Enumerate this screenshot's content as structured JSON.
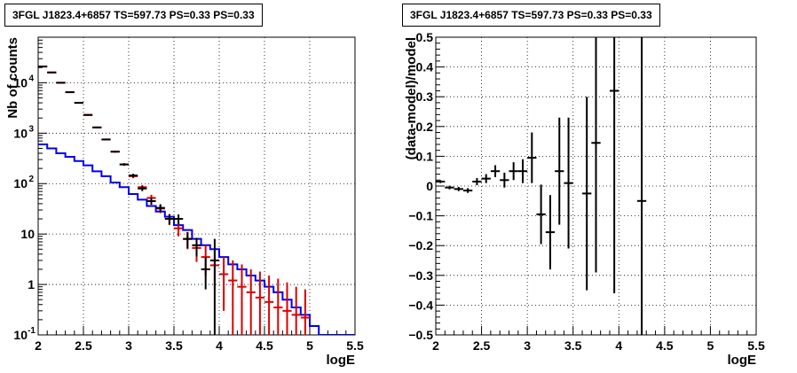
{
  "panels": [
    {
      "title": "3FGL J1823.4+6857 TS=597.73 PS=0.33 PS=0.33"
    },
    {
      "title": "3FGL J1823.4+6857 TS=597.73 PS=0.33 PS=0.33"
    }
  ],
  "chart_data": [
    {
      "type": "line",
      "xlabel": "logE",
      "ylabel": "Nb of counts",
      "xlim": [
        2,
        5.5
      ],
      "ylim": [
        0.1,
        80000
      ],
      "yscale": "log",
      "grid": true,
      "xticks": [
        "2",
        "2.5",
        "3",
        "3.5",
        "4",
        "4.5",
        "5",
        "5.5"
      ],
      "yticks": [
        {
          "value": 0.1,
          "label": "10",
          "sup": "-1"
        },
        {
          "value": 1,
          "label": "1",
          "sup": ""
        },
        {
          "value": 10,
          "label": "10",
          "sup": ""
        },
        {
          "value": 100,
          "label": "10",
          "sup": "2"
        },
        {
          "value": 1000,
          "label": "10",
          "sup": "3"
        },
        {
          "value": 10000,
          "label": "10",
          "sup": "4"
        }
      ],
      "bin_edges": [
        2.0,
        2.1,
        2.2,
        2.3,
        2.4,
        2.5,
        2.6,
        2.7,
        2.8,
        2.9,
        3.0,
        3.1,
        3.2,
        3.3,
        3.4,
        3.5,
        3.6,
        3.7,
        3.8,
        3.9,
        4.0,
        4.1,
        4.2,
        4.3,
        4.4,
        4.5,
        4.6,
        4.7,
        4.8,
        4.9,
        5.0,
        5.1,
        5.2,
        5.3,
        5.4,
        5.5
      ],
      "series": [
        {
          "color": "#0000ee",
          "style": "step",
          "values": [
            600,
            500,
            400,
            340,
            280,
            230,
            175,
            140,
            105,
            85,
            62,
            48,
            36,
            28,
            22,
            15,
            12,
            8,
            6,
            5,
            3.5,
            2.5,
            2,
            1.5,
            1.2,
            0.9,
            0.7,
            0.5,
            0.35,
            0.25,
            0.15,
            0.1,
            0.1,
            0.1,
            0.1
          ]
        },
        {
          "color": "#dd0000",
          "style": "errorbar",
          "x": [
            2.05,
            2.15,
            2.25,
            2.35,
            2.45,
            2.55,
            2.65,
            2.75,
            2.85,
            2.95,
            3.05,
            3.15,
            3.25,
            3.35,
            3.45,
            3.55,
            3.65,
            3.75,
            3.85,
            3.95,
            4.05,
            4.15,
            4.25,
            4.35,
            4.45,
            4.55,
            4.65,
            4.75,
            4.85,
            4.95
          ],
          "y": [
            21000,
            16000,
            10000,
            6500,
            4000,
            2300,
            1300,
            750,
            430,
            240,
            140,
            85,
            52,
            32,
            20,
            13,
            8,
            5.3,
            3.5,
            2.4,
            1.6,
            1.2,
            0.9,
            0.7,
            0.55,
            0.45,
            0.35,
            0.3,
            0.25,
            0.22
          ],
          "ylo": [
            20500,
            15600,
            9800,
            6400,
            3900,
            2200,
            1250,
            720,
            410,
            225,
            128,
            76,
            45,
            26,
            15,
            9,
            5,
            2.8,
            1.5,
            0.8,
            0.3,
            0.1,
            0.1,
            0.1,
            0.1,
            0.1,
            0.1,
            0.1,
            0.1,
            0.1
          ],
          "yhi": [
            21500,
            16400,
            10200,
            6600,
            4100,
            2400,
            1350,
            780,
            450,
            255,
            152,
            94,
            60,
            38,
            25,
            17,
            11,
            8,
            6,
            4.5,
            3.5,
            3,
            2.5,
            2,
            1.8,
            1.5,
            1.3,
            1.1,
            0.9,
            0.8
          ]
        },
        {
          "color": "#000000",
          "style": "errorbar",
          "x": [
            2.05,
            2.15,
            2.25,
            2.35,
            2.45,
            2.55,
            2.65,
            2.75,
            2.85,
            2.95,
            3.05,
            3.15,
            3.25,
            3.35,
            3.45,
            3.55,
            3.65,
            3.75,
            3.85,
            3.95
          ],
          "y": [
            21000,
            16000,
            10000,
            6500,
            4000,
            2300,
            1300,
            750,
            430,
            240,
            145,
            80,
            45,
            33,
            20,
            20,
            8,
            6,
            2,
            3
          ],
          "ylo": [
            20500,
            15700,
            9800,
            6400,
            3900,
            2250,
            1260,
            730,
            415,
            228,
            133,
            71,
            38,
            27,
            15.5,
            15.5,
            5.2,
            3.6,
            0.8,
            0.1
          ],
          "yhi": [
            21500,
            16300,
            10200,
            6600,
            4100,
            2350,
            1340,
            770,
            445,
            252,
            157,
            89,
            52,
            39,
            24.5,
            24.5,
            10.8,
            8.4,
            3.5,
            8
          ]
        }
      ]
    },
    {
      "type": "scatter",
      "xlabel": "logE",
      "ylabel": "(data-model)/model",
      "xlim": [
        2,
        5.5
      ],
      "ylim": [
        -0.5,
        0.5
      ],
      "grid": true,
      "xticks": [
        "2",
        "2.5",
        "3",
        "3.5",
        "4",
        "4.5",
        "5",
        "5.5"
      ],
      "yticks": [
        "−0.5",
        "−0.4",
        "−0.3",
        "−0.2",
        "−0.1",
        "0",
        "0.1",
        "0.2",
        "0.3",
        "0.4",
        "0.5"
      ],
      "series": [
        {
          "color": "#000000",
          "style": "errorbar",
          "x": [
            2.05,
            2.15,
            2.25,
            2.35,
            2.45,
            2.55,
            2.65,
            2.75,
            2.85,
            2.95,
            3.05,
            3.15,
            3.25,
            3.35,
            3.45,
            3.65,
            3.75,
            3.95,
            4.25
          ],
          "y": [
            0.015,
            -0.005,
            -0.01,
            -0.015,
            0.015,
            0.025,
            0.05,
            0.02,
            0.05,
            0.05,
            0.095,
            -0.095,
            -0.155,
            0.05,
            0.01,
            -0.025,
            0.145,
            0.32,
            -0.05
          ],
          "yerr": [
            0.005,
            0.006,
            0.007,
            0.008,
            0.012,
            0.015,
            0.02,
            0.025,
            0.03,
            0.04,
            0.085,
            0.1,
            0.125,
            0.18,
            0.22,
            0.325,
            0.435,
            0.68,
            0.9
          ]
        }
      ]
    }
  ]
}
